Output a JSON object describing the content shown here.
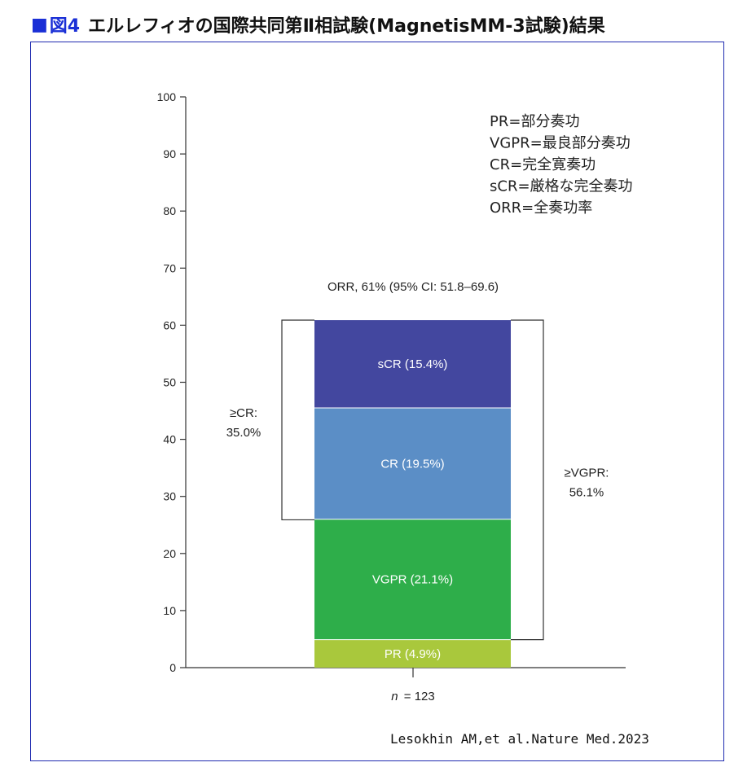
{
  "figure": {
    "square": "■",
    "label": "図4",
    "title": "エルレフィオの国際共同第Ⅱ相試験(MagnetisMM-3試験)結果",
    "accent_color": "#1a2fd6",
    "border_color": "#1f2bb0"
  },
  "source": "Lesokhin AM,et al.Nature Med.2023",
  "chart_data": {
    "type": "bar",
    "stacked": true,
    "categories": [
      "n = 123"
    ],
    "category_label_prefix": "n",
    "category_label_value": "= 123",
    "ylim": [
      0,
      100
    ],
    "yticks": [
      0,
      10,
      20,
      30,
      40,
      50,
      60,
      70,
      80,
      90,
      100
    ],
    "grid": false,
    "series": [
      {
        "name": "PR",
        "label": "PR (4.9%)",
        "value": 4.9,
        "color": "#a9c83c",
        "label_color": "#222222"
      },
      {
        "name": "VGPR",
        "label": "VGPR (21.1%)",
        "value": 21.1,
        "color": "#2eae4a",
        "label_color": "#ffffff"
      },
      {
        "name": "CR",
        "label": "CR (19.5%)",
        "value": 19.5,
        "color": "#5b8ec6",
        "label_color": "#ffffff"
      },
      {
        "name": "sCR",
        "label": "sCR (15.4%)",
        "value": 15.4,
        "color": "#43479f",
        "label_color": "#ffffff"
      }
    ],
    "orr_annotation": "ORR, 61% (95% CI: 51.8–69.6)",
    "brackets": [
      {
        "side": "left",
        "from": 25.9,
        "to": 60.9,
        "lines": [
          "≥CR:",
          "35.0%"
        ]
      },
      {
        "side": "right",
        "from": 4.9,
        "to": 60.9,
        "lines": [
          "≥VGPR:",
          "56.1%"
        ]
      }
    ],
    "legend_placement": "top-right",
    "legend": [
      "PR=部分奏功",
      "VGPR=最良部分奏功",
      "CR=完全寛奏功",
      "sCR=厳格な完全奏功",
      "ORR=全奏功率"
    ]
  }
}
